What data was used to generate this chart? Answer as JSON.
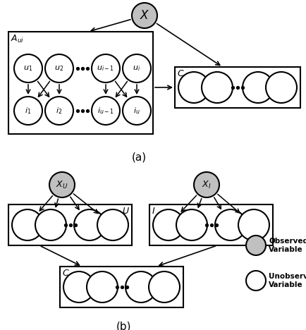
{
  "fig_width": 4.34,
  "fig_height": 4.68,
  "dpi": 100,
  "bg_color": "#ffffff",
  "node_color_gray": "#c0c0c0",
  "node_color_white": "#ffffff",
  "node_edge_color": "#000000",
  "panel_a_label": "(a)",
  "panel_b_label": "(b)",
  "legend_obs_label": "Observed\nVariable",
  "legend_unobs_label": "Unobserved\nVariable"
}
